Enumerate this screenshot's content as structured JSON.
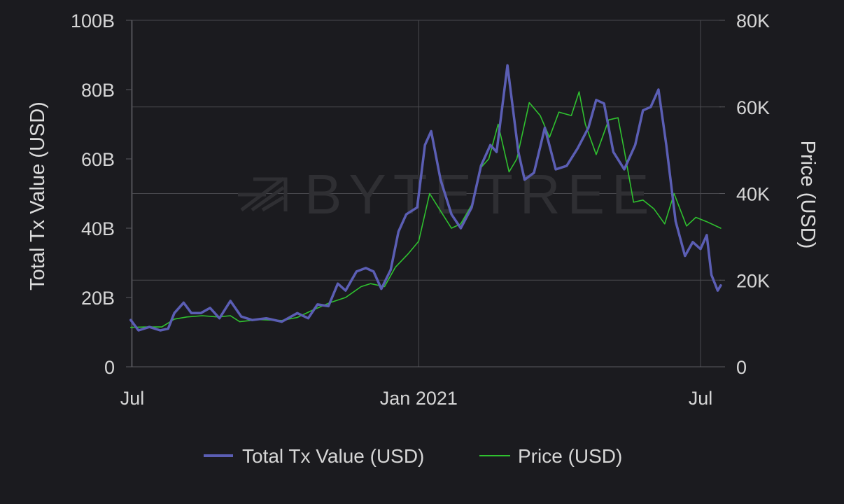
{
  "chart_data": {
    "type": "line",
    "title": "",
    "watermark": "BYTETREE",
    "x_axis": {
      "range": [
        "2020-06-30",
        "2021-07-08"
      ],
      "tick_values": [
        "2020-07-01",
        "2021-01-01",
        "2021-07-01"
      ],
      "tick_labels": [
        "Jul",
        "Jan 2021",
        "Jul"
      ]
    },
    "y_left": {
      "label": "Total Tx Value (USD)",
      "range": [
        0,
        100000000000
      ],
      "tick_values": [
        0,
        20000000000,
        40000000000,
        60000000000,
        80000000000,
        100000000000
      ],
      "tick_labels": [
        "0",
        "20B",
        "40B",
        "60B",
        "80B",
        "100B"
      ]
    },
    "y_right": {
      "label": "Price (USD)",
      "range": [
        0,
        80000
      ],
      "tick_values": [
        0,
        20000,
        40000,
        60000,
        80000
      ],
      "tick_labels": [
        "0",
        "20K",
        "40K",
        "60K",
        "80K"
      ]
    },
    "grid": true,
    "legend_position": "bottom-center",
    "series": [
      {
        "name": "Total Tx Value (USD)",
        "axis": "left",
        "color": "#5b5eb4",
        "points": [
          [
            "2020-06-30",
            13500000000
          ],
          [
            "2020-07-05",
            10500000000
          ],
          [
            "2020-07-12",
            11500000000
          ],
          [
            "2020-07-19",
            10500000000
          ],
          [
            "2020-07-24",
            11000000000
          ],
          [
            "2020-07-28",
            15500000000
          ],
          [
            "2020-08-03",
            18500000000
          ],
          [
            "2020-08-08",
            15500000000
          ],
          [
            "2020-08-14",
            15500000000
          ],
          [
            "2020-08-20",
            17000000000
          ],
          [
            "2020-08-26",
            14000000000
          ],
          [
            "2020-09-02",
            19000000000
          ],
          [
            "2020-09-09",
            14500000000
          ],
          [
            "2020-09-16",
            13500000000
          ],
          [
            "2020-09-25",
            14000000000
          ],
          [
            "2020-10-05",
            13000000000
          ],
          [
            "2020-10-15",
            15500000000
          ],
          [
            "2020-10-22",
            14000000000
          ],
          [
            "2020-10-28",
            18000000000
          ],
          [
            "2020-11-04",
            17500000000
          ],
          [
            "2020-11-10",
            24000000000
          ],
          [
            "2020-11-15",
            22000000000
          ],
          [
            "2020-11-22",
            27500000000
          ],
          [
            "2020-11-28",
            28500000000
          ],
          [
            "2020-12-03",
            27500000000
          ],
          [
            "2020-12-08",
            22500000000
          ],
          [
            "2020-12-14",
            28000000000
          ],
          [
            "2020-12-19",
            39000000000
          ],
          [
            "2020-12-24",
            44000000000
          ],
          [
            "2020-12-31",
            46000000000
          ],
          [
            "2021-01-05",
            64000000000
          ],
          [
            "2021-01-09",
            68000000000
          ],
          [
            "2021-01-15",
            54000000000
          ],
          [
            "2021-01-22",
            44000000000
          ],
          [
            "2021-01-28",
            40000000000
          ],
          [
            "2021-02-04",
            46000000000
          ],
          [
            "2021-02-10",
            58000000000
          ],
          [
            "2021-02-16",
            64000000000
          ],
          [
            "2021-02-20",
            62000000000
          ],
          [
            "2021-02-27",
            87000000000
          ],
          [
            "2021-03-06",
            62000000000
          ],
          [
            "2021-03-10",
            54000000000
          ],
          [
            "2021-03-16",
            56000000000
          ],
          [
            "2021-03-23",
            69000000000
          ],
          [
            "2021-03-30",
            57000000000
          ],
          [
            "2021-04-06",
            58000000000
          ],
          [
            "2021-04-13",
            63000000000
          ],
          [
            "2021-04-20",
            69000000000
          ],
          [
            "2021-04-25",
            77000000000
          ],
          [
            "2021-04-30",
            76000000000
          ],
          [
            "2021-05-06",
            62000000000
          ],
          [
            "2021-05-13",
            57000000000
          ],
          [
            "2021-05-20",
            64000000000
          ],
          [
            "2021-05-25",
            74000000000
          ],
          [
            "2021-05-30",
            75000000000
          ],
          [
            "2021-06-04",
            80000000000
          ],
          [
            "2021-06-09",
            64000000000
          ],
          [
            "2021-06-15",
            42000000000
          ],
          [
            "2021-06-21",
            32000000000
          ],
          [
            "2021-06-26",
            36000000000
          ],
          [
            "2021-07-01",
            34000000000
          ],
          [
            "2021-07-05",
            38000000000
          ],
          [
            "2021-07-08",
            26500000000
          ],
          [
            "2021-07-12",
            22000000000
          ],
          [
            "2021-07-14",
            23500000000
          ]
        ]
      },
      {
        "name": "Price (USD)",
        "axis": "right",
        "color": "#2fc12f",
        "points": [
          [
            "2020-06-30",
            9100
          ],
          [
            "2020-07-10",
            9200
          ],
          [
            "2020-07-20",
            9200
          ],
          [
            "2020-07-28",
            11000
          ],
          [
            "2020-08-05",
            11500
          ],
          [
            "2020-08-15",
            11800
          ],
          [
            "2020-08-25",
            11500
          ],
          [
            "2020-09-02",
            11800
          ],
          [
            "2020-09-08",
            10400
          ],
          [
            "2020-09-20",
            10900
          ],
          [
            "2020-10-05",
            10700
          ],
          [
            "2020-10-15",
            11400
          ],
          [
            "2020-10-25",
            13100
          ],
          [
            "2020-11-05",
            14800
          ],
          [
            "2020-11-15",
            16000
          ],
          [
            "2020-11-25",
            18500
          ],
          [
            "2020-12-01",
            19200
          ],
          [
            "2020-12-10",
            18500
          ],
          [
            "2020-12-17",
            23000
          ],
          [
            "2020-12-25",
            26000
          ],
          [
            "2021-01-01",
            29000
          ],
          [
            "2021-01-08",
            40000
          ],
          [
            "2021-01-15",
            36000
          ],
          [
            "2021-01-22",
            32000
          ],
          [
            "2021-01-28",
            33000
          ],
          [
            "2021-02-05",
            38000
          ],
          [
            "2021-02-10",
            46000
          ],
          [
            "2021-02-15",
            48000
          ],
          [
            "2021-02-21",
            56000
          ],
          [
            "2021-02-28",
            45000
          ],
          [
            "2021-03-05",
            48000
          ],
          [
            "2021-03-13",
            61000
          ],
          [
            "2021-03-20",
            58000
          ],
          [
            "2021-03-26",
            53000
          ],
          [
            "2021-04-01",
            58800
          ],
          [
            "2021-04-09",
            58000
          ],
          [
            "2021-04-14",
            63500
          ],
          [
            "2021-04-18",
            56000
          ],
          [
            "2021-04-25",
            49000
          ],
          [
            "2021-05-03",
            57000
          ],
          [
            "2021-05-09",
            57500
          ],
          [
            "2021-05-13",
            50000
          ],
          [
            "2021-05-19",
            38000
          ],
          [
            "2021-05-25",
            38500
          ],
          [
            "2021-06-01",
            36500
          ],
          [
            "2021-06-08",
            33000
          ],
          [
            "2021-06-14",
            40000
          ],
          [
            "2021-06-22",
            32500
          ],
          [
            "2021-06-28",
            34500
          ],
          [
            "2021-07-05",
            33500
          ],
          [
            "2021-07-14",
            32000
          ]
        ]
      }
    ]
  },
  "legend": {
    "items": [
      {
        "label": "Total Tx Value (USD)",
        "color": "#5b5eb4",
        "icon": "line-swatch"
      },
      {
        "label": "Price (USD)",
        "color": "#2fc12f",
        "icon": "line-swatch"
      }
    ]
  },
  "colors": {
    "background": "#1b1b1f",
    "grid": "#4a4a4f",
    "axis": "#5a5a5f"
  }
}
